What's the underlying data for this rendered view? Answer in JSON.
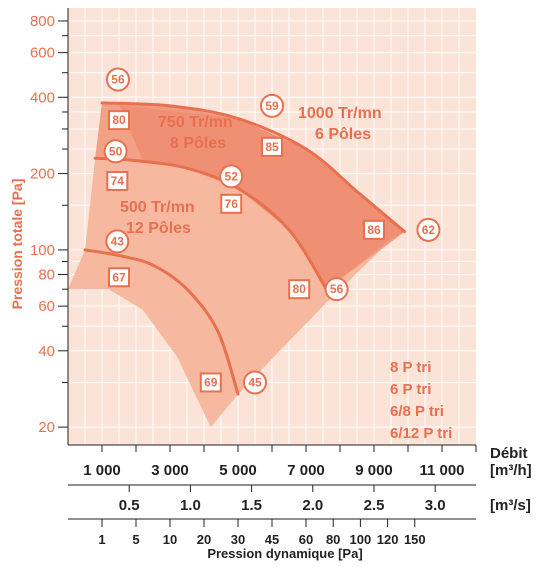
{
  "chart_data": {
    "type": "line",
    "ylabel": "Pression totale [Pa]",
    "yscale": "log",
    "ylim": [
      17,
      900
    ],
    "y_ticks": [
      {
        "value": 20,
        "label": "20"
      },
      {
        "value": 40,
        "label": "40"
      },
      {
        "value": 60,
        "label": "60"
      },
      {
        "value": 80,
        "label": "80"
      },
      {
        "value": 100,
        "label": "100"
      },
      {
        "value": 200,
        "label": "200"
      },
      {
        "value": 400,
        "label": "400"
      },
      {
        "value": 600,
        "label": "600"
      },
      {
        "value": 800,
        "label": "800"
      }
    ],
    "x_title": "Débit",
    "x_unit_m3h": "[m³/h]",
    "x_unit_m3s": "[m³/s]",
    "xlim": [
      0,
      12000
    ],
    "x_ticks_m3h": [
      "1 000",
      "3 000",
      "5 000",
      "7 000",
      "9 000",
      "11 000"
    ],
    "x_ticks_m3h_values": [
      1000,
      3000,
      5000,
      7000,
      9000,
      11000
    ],
    "x_ticks_m3s": [
      "0.5",
      "1.0",
      "1.5",
      "2.0",
      "2.5",
      "3.0"
    ],
    "x_ticks_m3s_values": [
      0.5,
      1.0,
      1.5,
      2.0,
      2.5,
      3.0
    ],
    "pd_label": "Pression dynamique [Pa]",
    "pd_ticks": [
      {
        "label": "1",
        "x": 1000
      },
      {
        "label": "5",
        "x": 2000
      },
      {
        "label": "10",
        "x": 3000
      },
      {
        "label": "20",
        "x": 4000
      },
      {
        "label": "30",
        "x": 5000
      },
      {
        "label": "45",
        "x": 6000
      },
      {
        "label": "60",
        "x": 7000
      },
      {
        "label": "80",
        "x": 7800
      },
      {
        "label": "100",
        "x": 8600
      },
      {
        "label": "120",
        "x": 9400
      },
      {
        "label": "150",
        "x": 10200
      }
    ],
    "series": [
      {
        "name": "1000 Tr/mn\n6 Pôles",
        "points": [
          [
            1000,
            380
          ],
          [
            3000,
            370
          ],
          [
            5000,
            330
          ],
          [
            7000,
            250
          ],
          [
            8500,
            170
          ],
          [
            9900,
            118
          ]
        ]
      },
      {
        "name": "750 Tr/mn\n8 Pôles",
        "points": [
          [
            800,
            230
          ],
          [
            2000,
            225
          ],
          [
            3500,
            210
          ],
          [
            5000,
            175
          ],
          [
            6500,
            120
          ],
          [
            7600,
            70
          ]
        ]
      },
      {
        "name": "500 Tr/mn\n12 Pôles",
        "points": [
          [
            500,
            100
          ],
          [
            1500,
            95
          ],
          [
            2500,
            87
          ],
          [
            3500,
            70
          ],
          [
            4400,
            48
          ],
          [
            5000,
            27
          ]
        ]
      }
    ],
    "efficiency_markers": [
      {
        "kind": "circle",
        "label": "56",
        "x": 1470,
        "y": 470
      },
      {
        "kind": "square",
        "label": "80",
        "x": 1500,
        "y": 325
      },
      {
        "kind": "circle",
        "label": "50",
        "x": 1400,
        "y": 245
      },
      {
        "kind": "square",
        "label": "74",
        "x": 1450,
        "y": 187
      },
      {
        "kind": "circle",
        "label": "43",
        "x": 1450,
        "y": 108
      },
      {
        "kind": "square",
        "label": "67",
        "x": 1500,
        "y": 78
      },
      {
        "kind": "circle",
        "label": "59",
        "x": 6000,
        "y": 370
      },
      {
        "kind": "square",
        "label": "85",
        "x": 6000,
        "y": 255
      },
      {
        "kind": "circle",
        "label": "52",
        "x": 4800,
        "y": 195
      },
      {
        "kind": "square",
        "label": "76",
        "x": 4800,
        "y": 152
      },
      {
        "kind": "square",
        "label": "86",
        "x": 9000,
        "y": 120
      },
      {
        "kind": "circle",
        "label": "62",
        "x": 10600,
        "y": 120
      },
      {
        "kind": "square",
        "label": "80",
        "x": 6800,
        "y": 70
      },
      {
        "kind": "circle",
        "label": "56",
        "x": 7900,
        "y": 70
      },
      {
        "kind": "square",
        "label": "69",
        "x": 4200,
        "y": 30
      },
      {
        "kind": "circle",
        "label": "45",
        "x": 5500,
        "y": 30
      }
    ],
    "legend": [
      "8 P tri",
      "6 P tri",
      "6/8 P tri",
      "6/12 P tri"
    ],
    "legend_position": "bottom-right",
    "grid": true,
    "colors": {
      "accent": "#e8704f",
      "background": "#fce3d8",
      "grid": "#ffffff",
      "area_light": "#f7b8a0",
      "area_mid": "#f29a7e",
      "area_dark": "#eb8466",
      "curve": "#e8704f"
    }
  }
}
